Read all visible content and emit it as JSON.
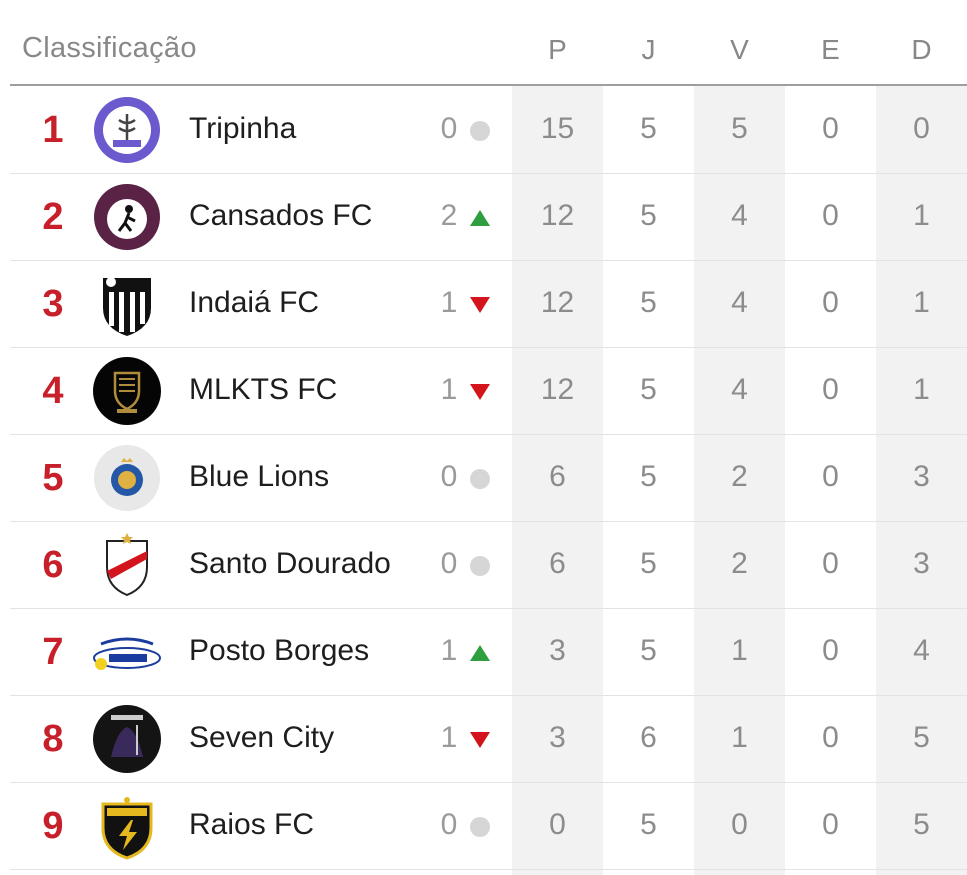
{
  "header": {
    "title": "Classificação",
    "columns": [
      "P",
      "J",
      "V",
      "E",
      "D"
    ]
  },
  "colors": {
    "position": "#c8202a",
    "up": "#2e9e3e",
    "down": "#d4141c",
    "same": "#d6d6d6",
    "shaded_column": "#f2f2f2"
  },
  "rows": [
    {
      "pos": "1",
      "team": "Tripinha",
      "change": "0",
      "trend": "same",
      "crest": "purple-white-medical-crest",
      "stats": [
        "15",
        "5",
        "5",
        "0",
        "0"
      ]
    },
    {
      "pos": "2",
      "team": "Cansados FC",
      "change": "2",
      "trend": "up",
      "crest": "purple-figure-crest",
      "stats": [
        "12",
        "5",
        "4",
        "0",
        "1"
      ]
    },
    {
      "pos": "3",
      "team": "Indaiá FC",
      "change": "1",
      "trend": "down",
      "crest": "black-white-striped-shield",
      "stats": [
        "12",
        "5",
        "4",
        "0",
        "1"
      ]
    },
    {
      "pos": "4",
      "team": "MLKTS FC",
      "change": "1",
      "trend": "down",
      "crest": "black-gold-crest",
      "stats": [
        "12",
        "5",
        "4",
        "0",
        "1"
      ]
    },
    {
      "pos": "5",
      "team": "Blue Lions",
      "change": "0",
      "trend": "same",
      "crest": "blue-lion-crest",
      "stats": [
        "6",
        "5",
        "2",
        "0",
        "3"
      ]
    },
    {
      "pos": "6",
      "team": "Santo Dourado",
      "change": "0",
      "trend": "same",
      "crest": "red-band-shield",
      "stats": [
        "6",
        "5",
        "2",
        "0",
        "3"
      ]
    },
    {
      "pos": "7",
      "team": "Posto Borges",
      "change": "1",
      "trend": "up",
      "crest": "auto-posto-logo",
      "stats": [
        "3",
        "5",
        "1",
        "0",
        "4"
      ]
    },
    {
      "pos": "8",
      "team": "Seven City",
      "change": "1",
      "trend": "down",
      "crest": "dark-dragon-crest",
      "stats": [
        "3",
        "6",
        "1",
        "0",
        "5"
      ]
    },
    {
      "pos": "9",
      "team": "Raios FC",
      "change": "0",
      "trend": "same",
      "crest": "gold-lightning-shield",
      "stats": [
        "0",
        "5",
        "0",
        "0",
        "5"
      ]
    }
  ]
}
